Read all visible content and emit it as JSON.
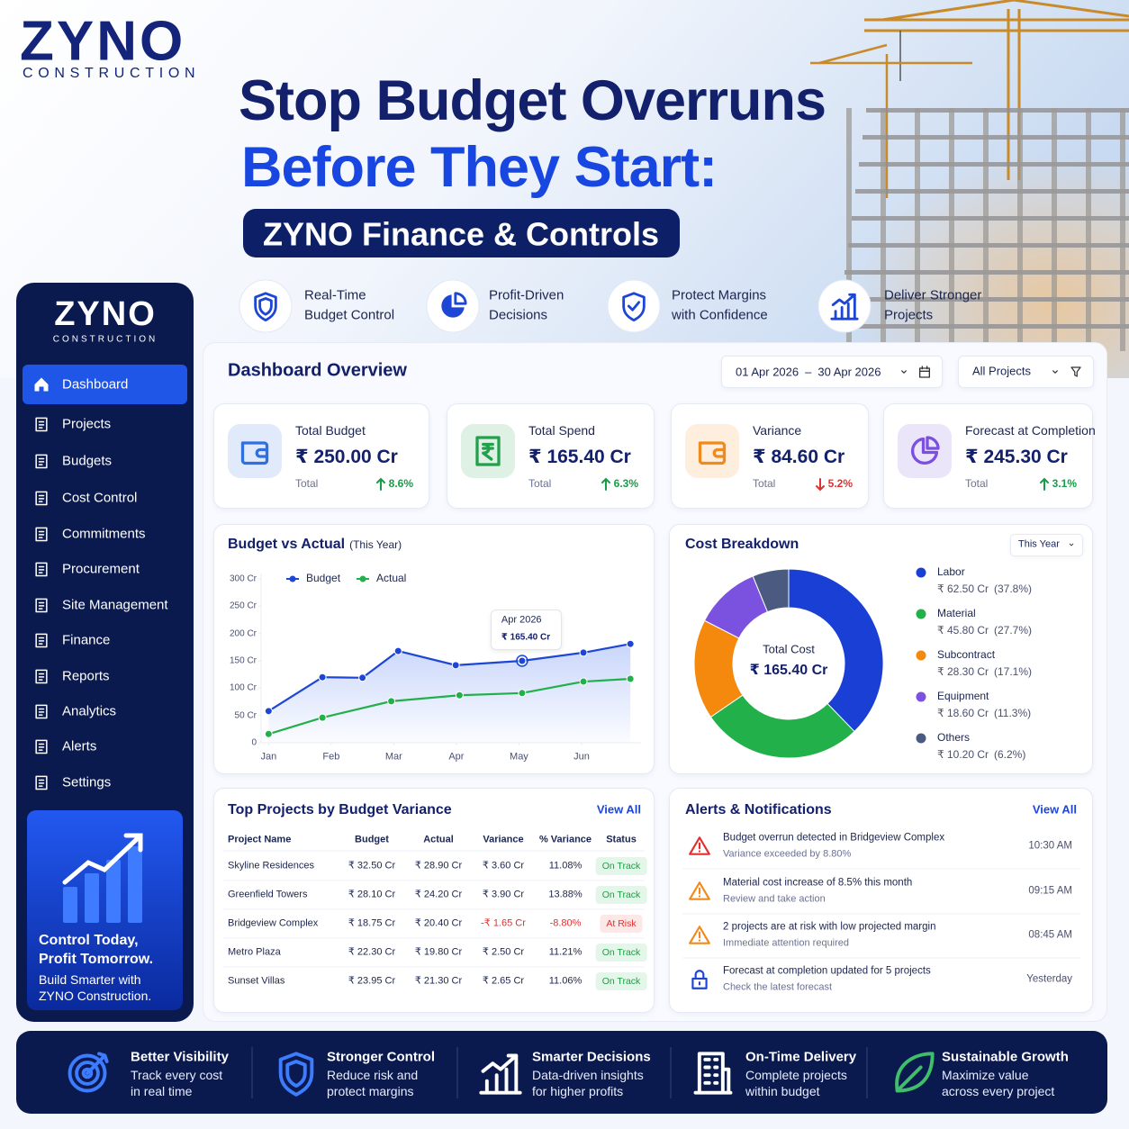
{
  "brand": {
    "name": "ZYNO",
    "tagline": "CONSTRUCTION"
  },
  "hero": {
    "line1": "Stop Budget Overruns",
    "line2": "Before They Start:",
    "badge": "ZYNO Finance & Controls"
  },
  "features": [
    {
      "line1": "Real-Time",
      "line2": "Budget Control",
      "icon": "shield"
    },
    {
      "line1": "Profit-Driven",
      "line2": "Decisions",
      "icon": "pie"
    },
    {
      "line1": "Protect Margins",
      "line2": "with Confidence",
      "icon": "shield-check"
    },
    {
      "line1": "Deliver Stronger",
      "line2": "Projects",
      "icon": "chart"
    }
  ],
  "sidebar": {
    "brand": "ZYNO",
    "tagline": "CONSTRUCTION",
    "menu": [
      "Dashboard",
      "Projects",
      "Budgets",
      "Cost Control",
      "Commitments",
      "Procurement",
      "Site Management",
      "Finance",
      "Reports",
      "Analytics",
      "Alerts",
      "Settings"
    ],
    "active": 0,
    "promo": {
      "title_line1": "Control Today,",
      "title_line2": "Profit Tomorrow.",
      "text_line1": "Build Smarter with",
      "text_line2": "ZYNO Construction."
    }
  },
  "dashboard": {
    "title": "Dashboard Overview",
    "date_from": "01 Apr 2026",
    "date_sep": "–",
    "date_to": "30 Apr 2026",
    "project_filter": "All Projects"
  },
  "kpis": [
    {
      "label": "Total Budget",
      "value": "₹ 250.00 Cr",
      "sub": "Total",
      "change": "8.6%",
      "trend": "up",
      "icon": "wallet",
      "color": "#2f6fe0"
    },
    {
      "label": "Total Spend",
      "value": "₹ 165.40 Cr",
      "sub": "Total",
      "change": "6.3%",
      "trend": "up",
      "icon": "rupee",
      "color": "#22a04b"
    },
    {
      "label": "Variance",
      "value": "₹ 84.60 Cr",
      "sub": "Total",
      "change": "5.2%",
      "trend": "down",
      "icon": "wallet",
      "color": "#f08a1c"
    },
    {
      "label": "Forecast at Completion",
      "value": "₹ 245.30 Cr",
      "sub": "Total",
      "change": "3.1%",
      "trend": "up",
      "icon": "pie",
      "color": "#7b4fe0"
    }
  ],
  "chart_data": [
    {
      "type": "line",
      "title": "Budget vs Actual",
      "subtitle": "(This Year)",
      "xlim": [
        0.88,
        6.95
      ],
      "xticks": [
        {
          "value": 1,
          "label": "Jan"
        },
        {
          "value": 2,
          "label": "Feb"
        },
        {
          "value": 3,
          "label": "Mar"
        },
        {
          "value": 4,
          "label": "Apr"
        },
        {
          "value": 5,
          "label": "May"
        },
        {
          "value": 6,
          "label": "Jun"
        }
      ],
      "ylim": [
        0,
        300
      ],
      "yticks": [
        0,
        {
          "value": 50,
          "label": "50 Cr"
        },
        {
          "value": 100,
          "label": "100 Cr"
        },
        {
          "value": 150,
          "label": "150 Cr"
        },
        {
          "value": 200,
          "label": "200 Cr"
        },
        {
          "value": 250,
          "label": "250 Cr"
        },
        {
          "value": 300,
          "label": "300 Cr"
        }
      ],
      "legend": "top",
      "series": [
        {
          "name": "Budget",
          "color": "#1d46d6",
          "x": [
            1,
            1.86,
            2.5,
            3.07,
            3.99,
            5.05,
            6.03,
            6.78
          ],
          "values": [
            58,
            120,
            119,
            168,
            142,
            150,
            165,
            181
          ]
        },
        {
          "name": "Actual",
          "color": "#22b04b",
          "x": [
            1,
            1.86,
            2.96,
            4.05,
            5.05,
            6.03,
            6.78
          ],
          "values": [
            16,
            46,
            76,
            87,
            91,
            112,
            117
          ]
        }
      ],
      "annotation": {
        "title": "Apr 2026",
        "text": "₹ 165.40 Cr"
      }
    },
    {
      "type": "donut",
      "title": "Cost Breakdown",
      "period": "This Year",
      "center_label": "Total Cost",
      "center_value": "₹ 165.40 Cr",
      "categories": [
        "Labor",
        "Material",
        "Subcontract",
        "Equipment",
        "Others"
      ],
      "amounts": [
        "₹ 62.50 Cr",
        "₹ 45.80 Cr",
        "₹ 28.30 Cr",
        "₹ 18.60 Cr",
        "₹ 10.20 Cr"
      ],
      "values": [
        37.8,
        27.7,
        17.1,
        11.3,
        6.2
      ],
      "value_labels": [
        "(37.8%)",
        "(27.7%)",
        "(17.1%)",
        "(11.3%)",
        "(6.2%)"
      ],
      "colors": [
        "#1a3fd4",
        "#22b04b",
        "#f5890e",
        "#7b52e0",
        "#4a5a80"
      ]
    }
  ],
  "projects_table": {
    "title": "Top Projects by Budget Variance",
    "view_all": "View All",
    "columns": [
      "Project Name",
      "Budget",
      "Actual",
      "Variance",
      "% Variance",
      "Status"
    ],
    "rows": [
      {
        "cells": [
          "Skyline Residences",
          "₹ 32.50 Cr",
          "₹ 28.90 Cr",
          "₹ 3.60 Cr",
          "11.08%",
          "On Track"
        ],
        "at_risk": false
      },
      {
        "cells": [
          "Greenfield Towers",
          "₹ 28.10 Cr",
          "₹ 24.20 Cr",
          "₹ 3.90 Cr",
          "13.88%",
          "On Track"
        ],
        "at_risk": false
      },
      {
        "cells": [
          "Bridgeview Complex",
          "₹ 18.75 Cr",
          "₹ 20.40 Cr",
          "-₹ 1.65 Cr",
          "-8.80%",
          "At Risk"
        ],
        "at_risk": true
      },
      {
        "cells": [
          "Metro Plaza",
          "₹ 22.30 Cr",
          "₹ 19.80 Cr",
          "₹ 2.50 Cr",
          "11.21%",
          "On Track"
        ],
        "at_risk": false
      },
      {
        "cells": [
          "Sunset Villas",
          "₹ 23.95 Cr",
          "₹ 21.30 Cr",
          "₹ 2.65 Cr",
          "11.06%",
          "On Track"
        ],
        "at_risk": false
      }
    ]
  },
  "alerts": {
    "title": "Alerts & Notifications",
    "view_all": "View All",
    "items": [
      {
        "title": "Budget overrun detected in Bridgeview Complex",
        "detail": "Variance exceeded by 8.80%",
        "time": "10:30 AM",
        "icon": "warning",
        "color": "#e03131"
      },
      {
        "title": "Material cost increase of 8.5% this month",
        "detail": "Review and take action",
        "time": "09:15 AM",
        "icon": "warning",
        "color": "#f08a1c"
      },
      {
        "title": "2 projects are at risk with low projected margin",
        "detail": "Immediate attention required",
        "time": "08:45 AM",
        "icon": "warning",
        "color": "#f08a1c"
      },
      {
        "title": "Forecast at completion updated for 5 projects",
        "detail": "Check the latest forecast",
        "time": "Yesterday",
        "icon": "lock",
        "color": "#1d46d6"
      }
    ]
  },
  "benefits": [
    {
      "title": "Better Visibility",
      "line1": "Track every cost",
      "line2": "in real time",
      "icon": "target",
      "color": "#3d7bff"
    },
    {
      "title": "Stronger Control",
      "line1": "Reduce risk and",
      "line2": "protect margins",
      "icon": "shield",
      "color": "#3d7bff"
    },
    {
      "title": "Smarter Decisions",
      "line1": "Data-driven insights",
      "line2": "for higher profits",
      "icon": "chart",
      "color": "#ffffff"
    },
    {
      "title": "On-Time Delivery",
      "line1": "Complete projects",
      "line2": "within budget",
      "icon": "building",
      "color": "#ffffff"
    },
    {
      "title": "Sustainable Growth",
      "line1": "Maximize value",
      "line2": "across every project",
      "icon": "leaf",
      "color": "#3fbf6a"
    }
  ]
}
